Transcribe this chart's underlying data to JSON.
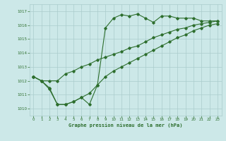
{
  "title": "Graphe pression niveau de la mer (hPa)",
  "bg_color": "#cce8e8",
  "grid_color": "#aacccc",
  "line_color": "#2d6e2d",
  "xlim": [
    -0.5,
    23.5
  ],
  "ylim": [
    1009.5,
    1017.5
  ],
  "yticks": [
    1010,
    1011,
    1012,
    1013,
    1014,
    1015,
    1016,
    1017
  ],
  "xticks": [
    0,
    1,
    2,
    3,
    4,
    5,
    6,
    7,
    8,
    9,
    10,
    11,
    12,
    13,
    14,
    15,
    16,
    17,
    18,
    19,
    20,
    21,
    22,
    23
  ],
  "series1_x": [
    0,
    1,
    2,
    3,
    4,
    5,
    6,
    7,
    8,
    9,
    10,
    11,
    12,
    13,
    14,
    15,
    16,
    17,
    18,
    19,
    20,
    21,
    22,
    23
  ],
  "series1_y": [
    1012.3,
    1012.0,
    1011.4,
    1010.3,
    1010.3,
    1010.5,
    1010.8,
    1010.3,
    1011.7,
    1015.8,
    1016.5,
    1016.75,
    1016.65,
    1016.8,
    1016.5,
    1016.2,
    1016.65,
    1016.65,
    1016.5,
    1016.5,
    1016.5,
    1016.3,
    1016.3,
    1016.3
  ],
  "series2_x": [
    0,
    1,
    2,
    3,
    4,
    5,
    6,
    7,
    8,
    9,
    10,
    11,
    12,
    13,
    14,
    15,
    16,
    17,
    18,
    19,
    20,
    21,
    22,
    23
  ],
  "series2_y": [
    1012.3,
    1012.0,
    1012.0,
    1012.0,
    1012.5,
    1012.7,
    1013.0,
    1013.2,
    1013.5,
    1013.7,
    1013.9,
    1014.1,
    1014.35,
    1014.5,
    1014.8,
    1015.1,
    1015.3,
    1015.5,
    1015.7,
    1015.8,
    1016.0,
    1016.1,
    1016.2,
    1016.3
  ],
  "series3_x": [
    0,
    1,
    2,
    3,
    4,
    5,
    6,
    7,
    8,
    9,
    10,
    11,
    12,
    13,
    14,
    15,
    16,
    17,
    18,
    19,
    20,
    21,
    22,
    23
  ],
  "series3_y": [
    1012.3,
    1012.0,
    1011.5,
    1010.3,
    1010.3,
    1010.5,
    1010.8,
    1011.1,
    1011.7,
    1012.3,
    1012.7,
    1013.0,
    1013.3,
    1013.6,
    1013.9,
    1014.2,
    1014.5,
    1014.8,
    1015.1,
    1015.3,
    1015.6,
    1015.8,
    1016.0,
    1016.1
  ]
}
